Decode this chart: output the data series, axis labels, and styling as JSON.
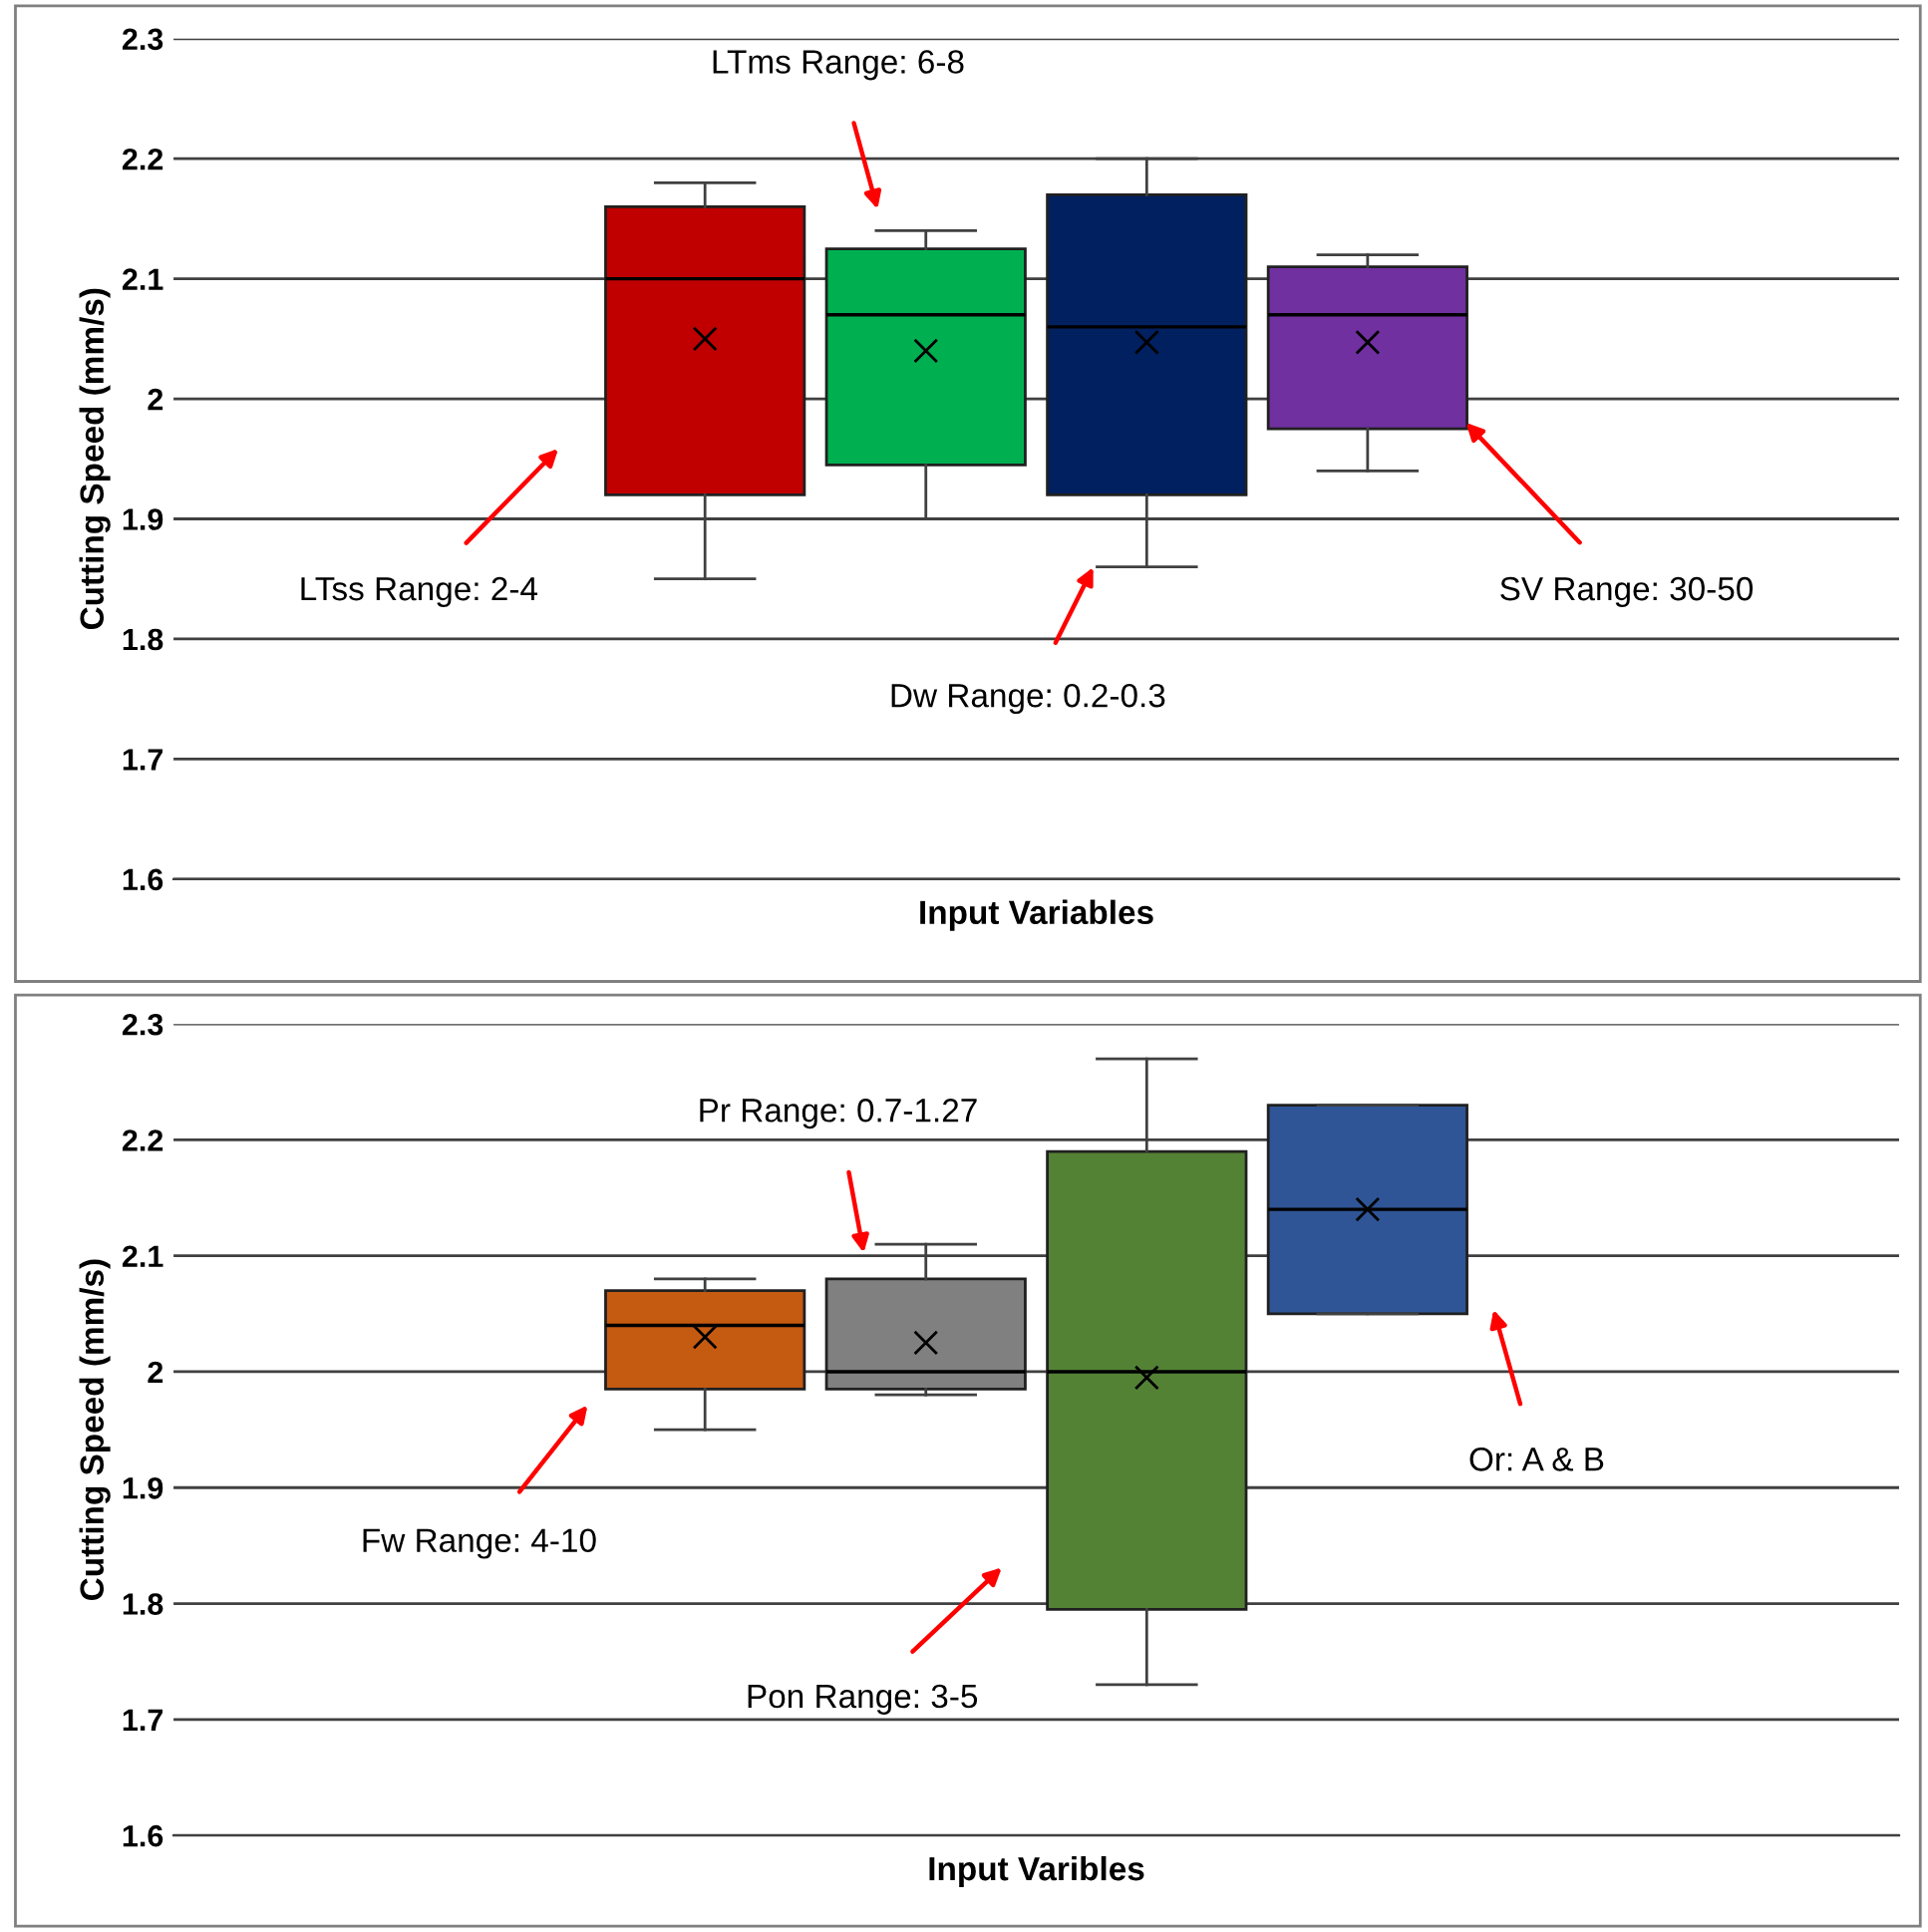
{
  "chart_data": [
    {
      "type": "box",
      "ylabel": "Cutting Speed (mm/s)",
      "xlabel": "Input Variables",
      "categories": [
        null
      ],
      "series": [
        {
          "color": "#c00000",
          "boxes": [
            {
              "low": 1.85,
              "q1": 1.92,
              "median": 2.1,
              "q3": 2.16,
              "high": 2.18,
              "mean": 2.05
            }
          ]
        },
        {
          "color": "#00b050",
          "boxes": [
            {
              "low": 1.9,
              "q1": 1.945,
              "median": 2.07,
              "q3": 2.125,
              "high": 2.14,
              "mean": 2.04
            }
          ]
        },
        {
          "color": "#002060",
          "boxes": [
            {
              "low": 1.86,
              "q1": 1.92,
              "median": 2.06,
              "q3": 2.17,
              "high": 2.2,
              "mean": 2.047
            }
          ]
        },
        {
          "color": "#7030a0",
          "boxes": [
            {
              "low": 1.94,
              "q1": 1.975,
              "median": 2.07,
              "q3": 2.11,
              "high": 2.12,
              "mean": 2.047
            }
          ]
        }
      ],
      "ylim": [
        1.6,
        2.3
      ],
      "yticks": [
        1.6,
        1.7,
        1.8,
        1.9,
        2,
        2.1,
        2.2,
        2.3
      ],
      "grid": "y",
      "legend": false,
      "annotations": [
        "LTss Range: 2-4",
        "LTms Range: 6-8",
        "Dw Range: 0.2-0.3",
        "SV Range: 30-50"
      ]
    },
    {
      "type": "box",
      "ylabel": "Cutting Speed (mm/s)",
      "xlabel": "Input Varibles",
      "categories": [
        null
      ],
      "series": [
        {
          "color": "#c55a11",
          "boxes": [
            {
              "low": 1.95,
              "q1": 1.985,
              "median": 2.04,
              "q3": 2.07,
              "high": 2.08,
              "mean": 2.03
            }
          ]
        },
        {
          "color": "#808080",
          "boxes": [
            {
              "low": 1.98,
              "q1": 1.985,
              "median": 2.0,
              "q3": 2.08,
              "high": 2.11,
              "mean": 2.025
            }
          ]
        },
        {
          "color": "#548235",
          "boxes": [
            {
              "low": 1.73,
              "q1": 1.795,
              "median": 2.0,
              "q3": 2.19,
              "high": 2.27,
              "mean": 1.995
            }
          ]
        },
        {
          "color": "#2f5597",
          "boxes": [
            {
              "low": 2.05,
              "q1": 2.05,
              "median": 2.14,
              "q3": 2.23,
              "high": 2.23,
              "mean": 2.14
            }
          ]
        }
      ],
      "ylim": [
        1.6,
        2.3
      ],
      "yticks": [
        1.6,
        1.7,
        1.8,
        1.9,
        2,
        2.1,
        2.2,
        2.3
      ],
      "grid": "y",
      "legend": false,
      "annotations": [
        "Fw Range: 4-10",
        "Pr Range: 0.7-1.27",
        "Pon Range: 3-5",
        "Or: A & B"
      ]
    }
  ]
}
